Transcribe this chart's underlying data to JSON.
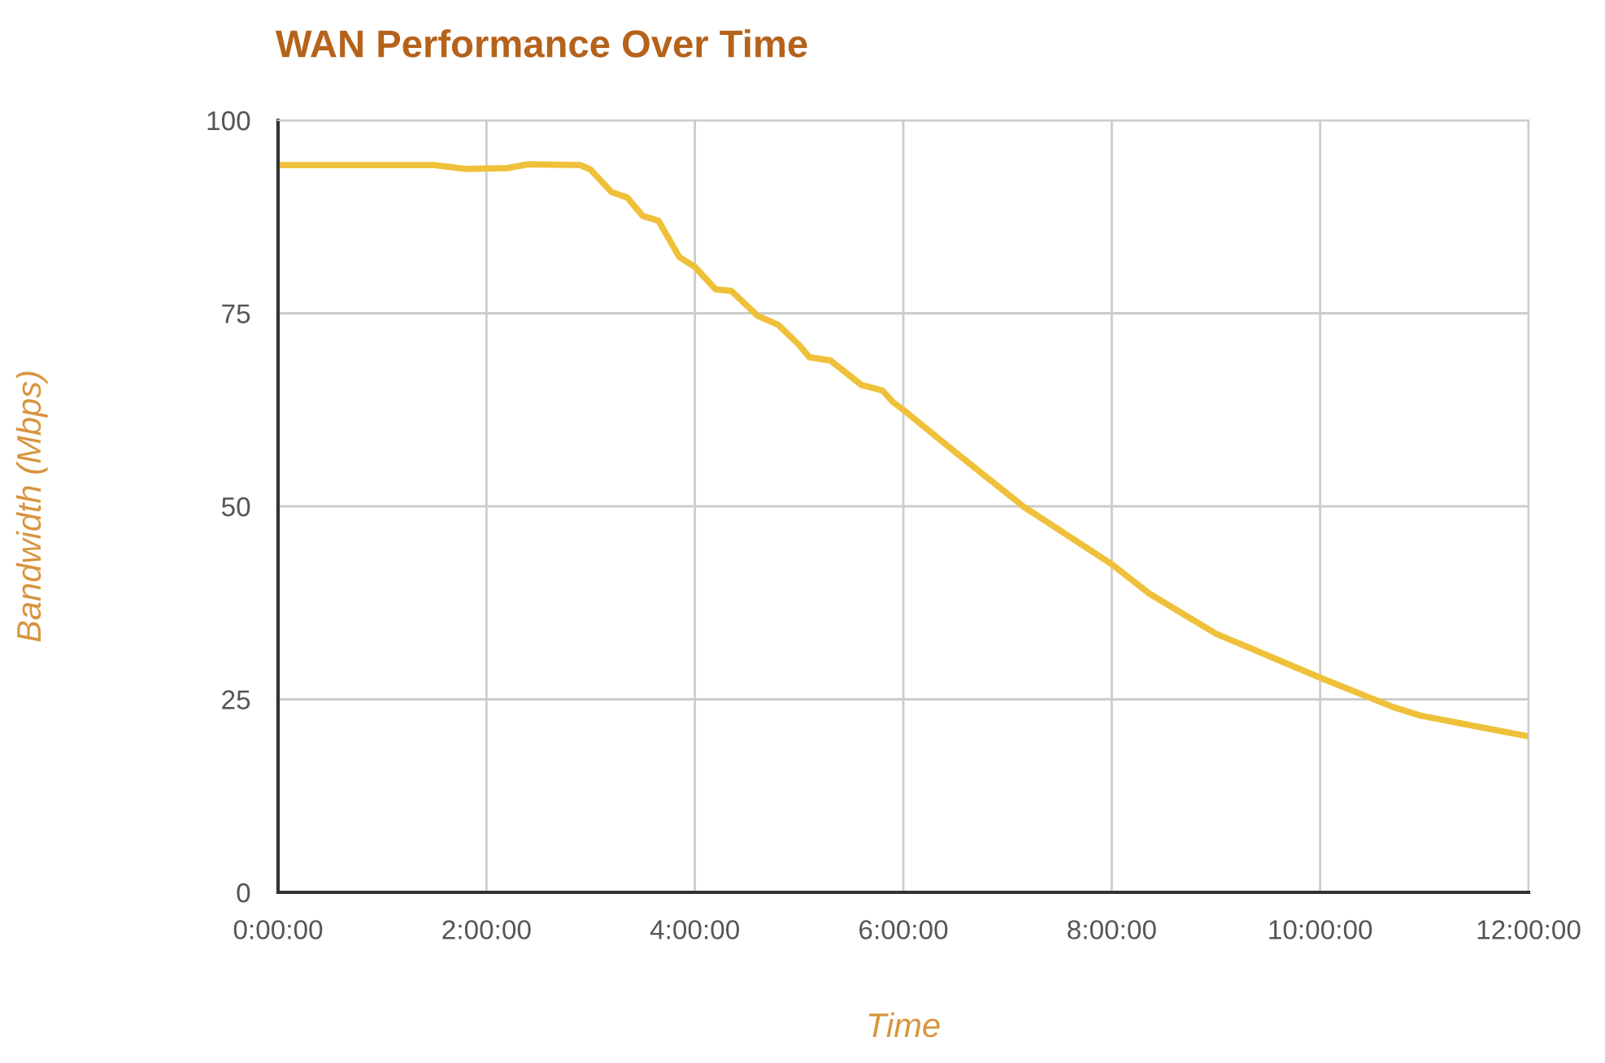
{
  "chart_data": {
    "type": "line",
    "title": "WAN Performance Over Time",
    "xlabel": "Time",
    "ylabel": "Bandwidth (Mbps)",
    "x": [
      0,
      1.5,
      1.8,
      2.2,
      2.4,
      2.9,
      3.0,
      3.2,
      3.35,
      3.5,
      3.65,
      3.85,
      4.0,
      4.2,
      4.35,
      4.6,
      4.8,
      5.0,
      5.1,
      5.3,
      5.6,
      5.8,
      5.9,
      6.0,
      6.5,
      7.16,
      8.0,
      8.36,
      9.0,
      10.0,
      10.7,
      10.96,
      12.0
    ],
    "series": [
      {
        "color": "#efc13a",
        "values": [
          94.2,
          94.2,
          93.7,
          93.8,
          94.3,
          94.2,
          93.6,
          90.7,
          90.0,
          87.6,
          87.0,
          82.3,
          81.0,
          78.1,
          77.9,
          74.7,
          73.5,
          70.9,
          69.3,
          68.9,
          65.7,
          65.0,
          63.5,
          62.5,
          57.0,
          49.9,
          42.5,
          38.7,
          33.5,
          27.8,
          24.0,
          22.9,
          20.2
        ]
      }
    ],
    "xlim": [
      0,
      12
    ],
    "xticks": [
      {
        "value": 0,
        "label": "0:00:00"
      },
      {
        "value": 2,
        "label": "2:00:00"
      },
      {
        "value": 4,
        "label": "4:00:00"
      },
      {
        "value": 6,
        "label": "6:00:00"
      },
      {
        "value": 8,
        "label": "8:00:00"
      },
      {
        "value": 10,
        "label": "10:00:00"
      },
      {
        "value": 12,
        "label": "12:00:00"
      }
    ],
    "ylim": [
      0,
      100
    ],
    "yticks": [
      0,
      25,
      50,
      75,
      100
    ],
    "grid": true,
    "marker": "none",
    "line_style": "solid"
  }
}
